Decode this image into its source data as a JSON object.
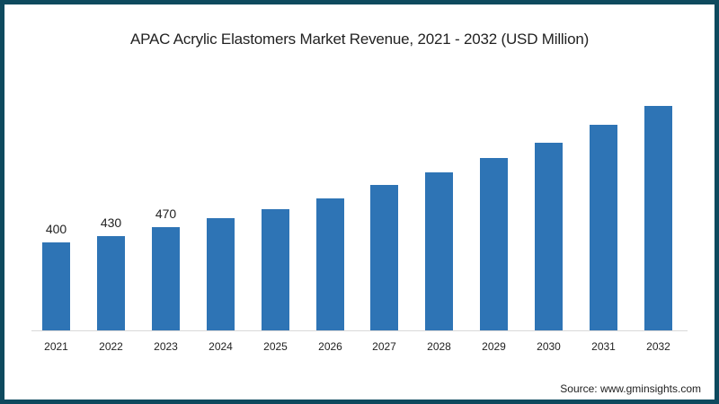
{
  "chart_data": {
    "type": "bar",
    "title": "APAC Acrylic Elastomers Market Revenue, 2021 - 2032 (USD Million)",
    "xlabel": "",
    "ylabel": "",
    "categories": [
      "2021",
      "2022",
      "2023",
      "2024",
      "2025",
      "2026",
      "2027",
      "2028",
      "2029",
      "2030",
      "2031",
      "2032"
    ],
    "values": [
      400,
      430,
      470,
      510,
      550,
      600,
      660,
      720,
      785,
      855,
      935,
      1020
    ],
    "data_labels": [
      "400",
      "430",
      "470",
      "",
      "",
      "",
      "",
      "",
      "",
      "",
      "",
      ""
    ],
    "grid": false,
    "legend": null,
    "bar_color": "#2e74b5"
  },
  "title": "APAC Acrylic Elastomers Market Revenue, 2021 - 2032 (USD Million)",
  "source": "Source: www.gminsights.com",
  "colors": {
    "bar": "#2e74b5",
    "frame": "#0e4a5e",
    "axis": "#d9d9d9"
  }
}
